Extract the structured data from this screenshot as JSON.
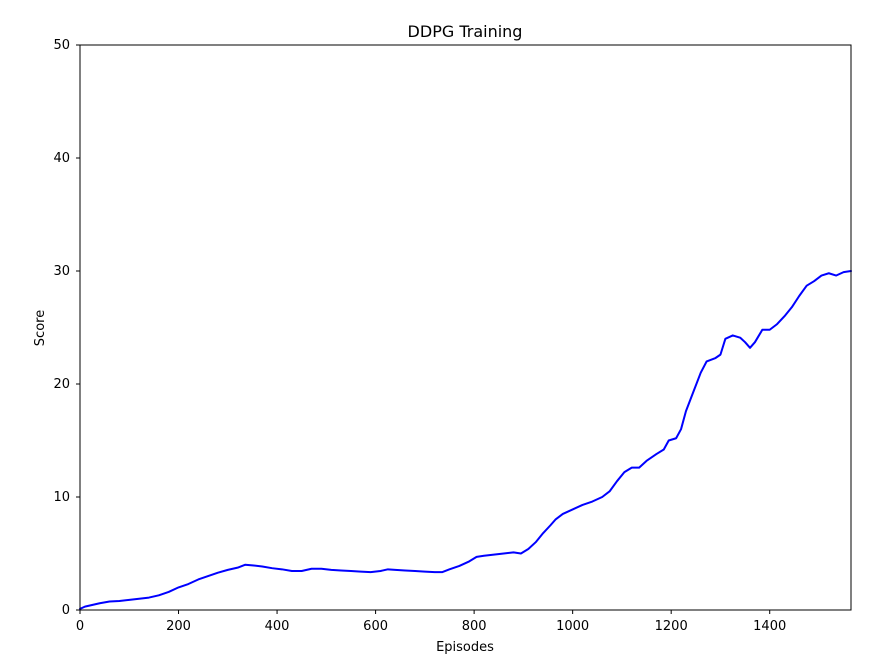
{
  "chart_data": {
    "type": "line",
    "title": "DDPG Training",
    "xlabel": "Episodes",
    "ylabel": "Score",
    "xlim": [
      0,
      1565
    ],
    "ylim": [
      0,
      50
    ],
    "x_ticks": [
      0,
      200,
      400,
      600,
      800,
      1000,
      1200,
      1400
    ],
    "y_ticks": [
      0,
      10,
      20,
      30,
      40,
      50
    ],
    "grid": false,
    "series": [
      {
        "color": "#0000ff",
        "points": [
          [
            0,
            0.1
          ],
          [
            10,
            0.3
          ],
          [
            20,
            0.4
          ],
          [
            40,
            0.6
          ],
          [
            60,
            0.75
          ],
          [
            80,
            0.8
          ],
          [
            100,
            0.9
          ],
          [
            120,
            1.0
          ],
          [
            140,
            1.1
          ],
          [
            160,
            1.3
          ],
          [
            180,
            1.6
          ],
          [
            200,
            2.0
          ],
          [
            220,
            2.3
          ],
          [
            240,
            2.7
          ],
          [
            260,
            3.0
          ],
          [
            280,
            3.3
          ],
          [
            300,
            3.55
          ],
          [
            320,
            3.75
          ],
          [
            335,
            4.0
          ],
          [
            350,
            3.95
          ],
          [
            370,
            3.85
          ],
          [
            390,
            3.7
          ],
          [
            410,
            3.6
          ],
          [
            430,
            3.45
          ],
          [
            450,
            3.45
          ],
          [
            470,
            3.65
          ],
          [
            490,
            3.65
          ],
          [
            510,
            3.55
          ],
          [
            530,
            3.5
          ],
          [
            550,
            3.45
          ],
          [
            570,
            3.4
          ],
          [
            590,
            3.35
          ],
          [
            610,
            3.45
          ],
          [
            625,
            3.6
          ],
          [
            640,
            3.55
          ],
          [
            660,
            3.5
          ],
          [
            680,
            3.45
          ],
          [
            700,
            3.4
          ],
          [
            720,
            3.35
          ],
          [
            735,
            3.35
          ],
          [
            750,
            3.6
          ],
          [
            770,
            3.9
          ],
          [
            790,
            4.3
          ],
          [
            805,
            4.7
          ],
          [
            820,
            4.8
          ],
          [
            840,
            4.9
          ],
          [
            860,
            5.0
          ],
          [
            880,
            5.1
          ],
          [
            895,
            5.0
          ],
          [
            910,
            5.4
          ],
          [
            925,
            6.0
          ],
          [
            940,
            6.8
          ],
          [
            955,
            7.5
          ],
          [
            965,
            8.0
          ],
          [
            980,
            8.5
          ],
          [
            1000,
            8.9
          ],
          [
            1020,
            9.3
          ],
          [
            1040,
            9.6
          ],
          [
            1060,
            10.0
          ],
          [
            1075,
            10.5
          ],
          [
            1090,
            11.4
          ],
          [
            1105,
            12.2
          ],
          [
            1120,
            12.6
          ],
          [
            1135,
            12.6
          ],
          [
            1150,
            13.2
          ],
          [
            1170,
            13.8
          ],
          [
            1185,
            14.2
          ],
          [
            1195,
            15.0
          ],
          [
            1210,
            15.2
          ],
          [
            1220,
            16.0
          ],
          [
            1230,
            17.6
          ],
          [
            1245,
            19.3
          ],
          [
            1260,
            21.0
          ],
          [
            1272,
            22.0
          ],
          [
            1290,
            22.3
          ],
          [
            1300,
            22.6
          ],
          [
            1310,
            24.0
          ],
          [
            1325,
            24.3
          ],
          [
            1340,
            24.1
          ],
          [
            1350,
            23.7
          ],
          [
            1360,
            23.2
          ],
          [
            1370,
            23.7
          ],
          [
            1385,
            24.8
          ],
          [
            1400,
            24.8
          ],
          [
            1415,
            25.3
          ],
          [
            1430,
            26.0
          ],
          [
            1445,
            26.8
          ],
          [
            1460,
            27.8
          ],
          [
            1475,
            28.7
          ],
          [
            1490,
            29.1
          ],
          [
            1505,
            29.6
          ],
          [
            1520,
            29.8
          ],
          [
            1535,
            29.6
          ],
          [
            1550,
            29.9
          ],
          [
            1565,
            30.0
          ]
        ]
      }
    ]
  }
}
